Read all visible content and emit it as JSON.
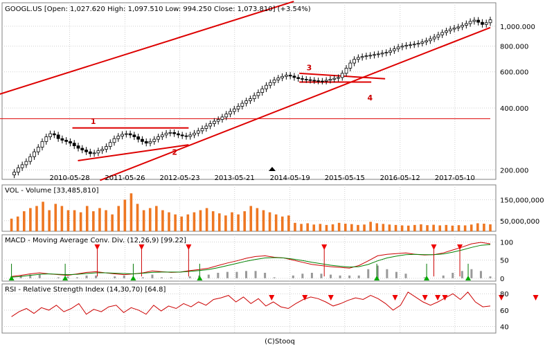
{
  "chart_data": [
    {
      "id": "price",
      "type": "candlestick",
      "header": "GOOGL.US [Open: 1,027.620  High: 1,097.510  Low: 994.250  Close: 1,073.810] (+3.54%)",
      "scale": "log",
      "ylim": [
        180,
        1300
      ],
      "ytick_values": [
        200,
        400,
        600,
        800,
        1000
      ],
      "ytick_labels": [
        "200.000",
        "400.000",
        "600.000",
        "800.000",
        "1,000.000"
      ],
      "xtick_labels": [
        "2010-05-28",
        "2011-05-26",
        "2012-05-23",
        "2013-05-21",
        "2014-05-19",
        "2015-05-15",
        "2016-05-12",
        "2017-05-10"
      ],
      "weekly_closes": [
        195,
        205,
        212,
        220,
        232,
        245,
        258,
        275,
        290,
        300,
        296,
        284,
        279,
        275,
        270,
        262,
        255,
        250,
        245,
        240,
        242,
        248,
        252,
        260,
        272,
        284,
        292,
        298,
        300,
        296,
        290,
        282,
        275,
        270,
        275,
        282,
        290,
        296,
        302,
        304,
        300,
        296,
        293,
        291,
        296,
        302,
        310,
        318,
        327,
        336,
        345,
        352,
        362,
        374,
        385,
        396,
        408,
        422,
        434,
        444,
        460,
        476,
        496,
        516,
        532,
        548,
        560,
        570,
        578,
        572,
        563,
        556,
        552,
        549,
        546,
        543,
        541,
        540,
        546,
        552,
        558,
        563,
        590,
        625,
        662,
        690,
        705,
        712,
        718,
        722,
        728,
        733,
        740,
        746,
        760,
        776,
        792,
        800,
        808,
        812,
        818,
        826,
        838,
        850,
        868,
        886,
        908,
        932,
        950,
        968,
        980,
        992,
        1010,
        1030,
        1055,
        1070,
        1045,
        1020,
        1040,
        1074
      ],
      "annotations": [
        {
          "text": "1",
          "x": 2010.78,
          "y": 335
        },
        {
          "text": "2",
          "x": 2012.25,
          "y": 237
        },
        {
          "text": "3",
          "x": 2014.68,
          "y": 610
        },
        {
          "text": "4",
          "x": 2015.78,
          "y": 436
        }
      ],
      "trendlines": [
        {
          "from": [
            2009.0,
            455
          ],
          "to": [
            2014.45,
            1320
          ]
        },
        {
          "from": [
            2010.95,
            178
          ],
          "to": [
            2018.0,
            985
          ]
        },
        {
          "from": [
            2009.0,
            355
          ],
          "to": [
            2018.0,
            355
          ]
        },
        {
          "from": [
            2010.45,
            320
          ],
          "to": [
            2012.55,
            320
          ]
        },
        {
          "from": [
            2010.55,
            222
          ],
          "to": [
            2012.55,
            265
          ]
        },
        {
          "from": [
            2014.55,
            590
          ],
          "to": [
            2016.1,
            555
          ]
        },
        {
          "from": [
            2014.55,
            535
          ],
          "to": [
            2015.85,
            535
          ]
        }
      ]
    },
    {
      "id": "volume",
      "type": "bar",
      "header": "VOL - Volume [33,485,810]",
      "ylim": [
        0,
        220000000
      ],
      "ytick_values": [
        50000000,
        150000000
      ],
      "ytick_labels": [
        "50,000,000",
        "150,000,000"
      ],
      "values": [
        60000000,
        70000000,
        95000000,
        110000000,
        120000000,
        140000000,
        100000000,
        130000000,
        120000000,
        100000000,
        100000000,
        90000000,
        120000000,
        95000000,
        110000000,
        100000000,
        80000000,
        120000000,
        150000000,
        180000000,
        130000000,
        100000000,
        110000000,
        120000000,
        100000000,
        90000000,
        80000000,
        70000000,
        80000000,
        90000000,
        100000000,
        110000000,
        95000000,
        85000000,
        75000000,
        90000000,
        80000000,
        95000000,
        120000000,
        110000000,
        100000000,
        90000000,
        80000000,
        70000000,
        75000000,
        40000000,
        35000000,
        38000000,
        32000000,
        35000000,
        30000000,
        33000000,
        40000000,
        36000000,
        34000000,
        30000000,
        32000000,
        45000000,
        38000000,
        35000000,
        32000000,
        30000000,
        28000000,
        27000000,
        30000000,
        33000000,
        29000000,
        31000000,
        28000000,
        30000000,
        27000000,
        29000000,
        28000000,
        32000000,
        38000000,
        36000000,
        33000000
      ]
    },
    {
      "id": "macd",
      "type": "line",
      "header": "MACD - Moving Average Conv. Div. (12,26,9) [99.22]",
      "ylim": [
        -8,
        120
      ],
      "ytick_values": [
        0,
        50,
        100
      ],
      "ytick_labels": [
        "0",
        "50",
        "100"
      ],
      "series": [
        {
          "role": "macd",
          "color": "#cc0000",
          "values": [
            5,
            8,
            12,
            15,
            12,
            10,
            8,
            12,
            16,
            18,
            15,
            12,
            10,
            12,
            15,
            20,
            18,
            16,
            17,
            21,
            24,
            28,
            35,
            42,
            48,
            55,
            60,
            62,
            58,
            56,
            50,
            44,
            38,
            35,
            32,
            30,
            28,
            35,
            48,
            62,
            66,
            68,
            70,
            66,
            64,
            65,
            70,
            78,
            86,
            95,
            99,
            95
          ]
        },
        {
          "role": "signal",
          "color": "#008000",
          "values": [
            3,
            5,
            8,
            11,
            12,
            11,
            10,
            11,
            13,
            15,
            15,
            14,
            13,
            12,
            14,
            16,
            17,
            17,
            17,
            19,
            21,
            24,
            29,
            35,
            41,
            47,
            52,
            56,
            57,
            56,
            53,
            49,
            44,
            40,
            36,
            33,
            31,
            32,
            38,
            48,
            56,
            61,
            65,
            66,
            65,
            65,
            67,
            72,
            78,
            85,
            91,
            93
          ]
        }
      ],
      "sell_signals": [
        2010.9,
        2011.7,
        2012.55,
        2015.0,
        2016.98,
        2017.45
      ],
      "buy_signals": [
        2009.35,
        2010.32,
        2011.55,
        2012.75,
        2015.95,
        2016.85,
        2017.6
      ]
    },
    {
      "id": "rsi",
      "type": "line",
      "header": "RSI - Relative Strength Index (14,30,70) [64.8]",
      "ylim": [
        32,
        92
      ],
      "ytick_values": [
        40,
        60,
        80
      ],
      "ytick_labels": [
        "40",
        "60",
        "80"
      ],
      "series": [
        {
          "role": "rsi",
          "color": "#cc0000",
          "values": [
            52,
            58,
            62,
            56,
            63,
            60,
            66,
            58,
            62,
            68,
            55,
            61,
            58,
            64,
            66,
            57,
            63,
            60,
            55,
            66,
            59,
            65,
            62,
            68,
            64,
            70,
            66,
            73,
            75,
            78,
            70,
            76,
            68,
            74,
            65,
            70,
            64,
            62,
            68,
            73,
            76,
            74,
            70,
            65,
            68,
            72,
            75,
            73,
            78,
            74,
            68,
            60,
            66,
            82,
            76,
            70,
            66,
            70,
            75,
            80,
            73,
            82,
            70,
            64,
            65
          ]
        }
      ],
      "sell_signals": [
        2014.05,
        2014.65,
        2015.12,
        2016.28,
        2016.82,
        2017.05,
        2017.18,
        2018.2,
        2018.82
      ]
    }
  ],
  "footer": "(C)Stooq"
}
